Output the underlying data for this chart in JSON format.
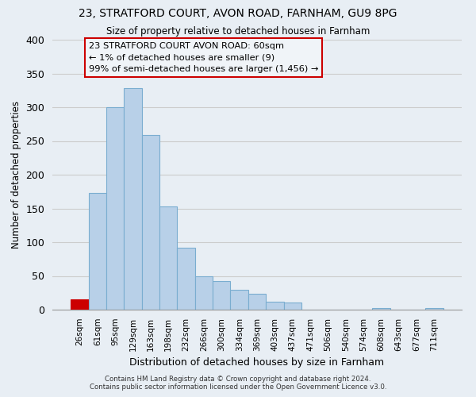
{
  "title1": "23, STRATFORD COURT, AVON ROAD, FARNHAM, GU9 8PG",
  "title2": "Size of property relative to detached houses in Farnham",
  "xlabel": "Distribution of detached houses by size in Farnham",
  "ylabel": "Number of detached properties",
  "bin_labels": [
    "26sqm",
    "61sqm",
    "95sqm",
    "129sqm",
    "163sqm",
    "198sqm",
    "232sqm",
    "266sqm",
    "300sqm",
    "334sqm",
    "369sqm",
    "403sqm",
    "437sqm",
    "471sqm",
    "506sqm",
    "540sqm",
    "574sqm",
    "608sqm",
    "643sqm",
    "677sqm",
    "711sqm"
  ],
  "bar_heights": [
    15,
    173,
    300,
    328,
    259,
    153,
    92,
    50,
    42,
    29,
    23,
    12,
    11,
    0,
    0,
    0,
    0,
    2,
    0,
    0,
    2
  ],
  "bar_color": "#b8d0e8",
  "bar_edge_color": "#7aadd0",
  "highlight_bar_index": 0,
  "highlight_bar_color": "#cc0000",
  "annotation_title": "23 STRATFORD COURT AVON ROAD: 60sqm",
  "annotation_line1": "← 1% of detached houses are smaller (9)",
  "annotation_line2": "99% of semi-detached houses are larger (1,456) →",
  "annotation_box_facecolor": "#f0f4f8",
  "annotation_box_edgecolor": "#cc0000",
  "ylim": [
    0,
    400
  ],
  "yticks": [
    0,
    50,
    100,
    150,
    200,
    250,
    300,
    350,
    400
  ],
  "footer1": "Contains HM Land Registry data © Crown copyright and database right 2024.",
  "footer2": "Contains public sector information licensed under the Open Government Licence v3.0.",
  "background_color": "#e8eef4",
  "plot_bg_color": "#e8eef4"
}
